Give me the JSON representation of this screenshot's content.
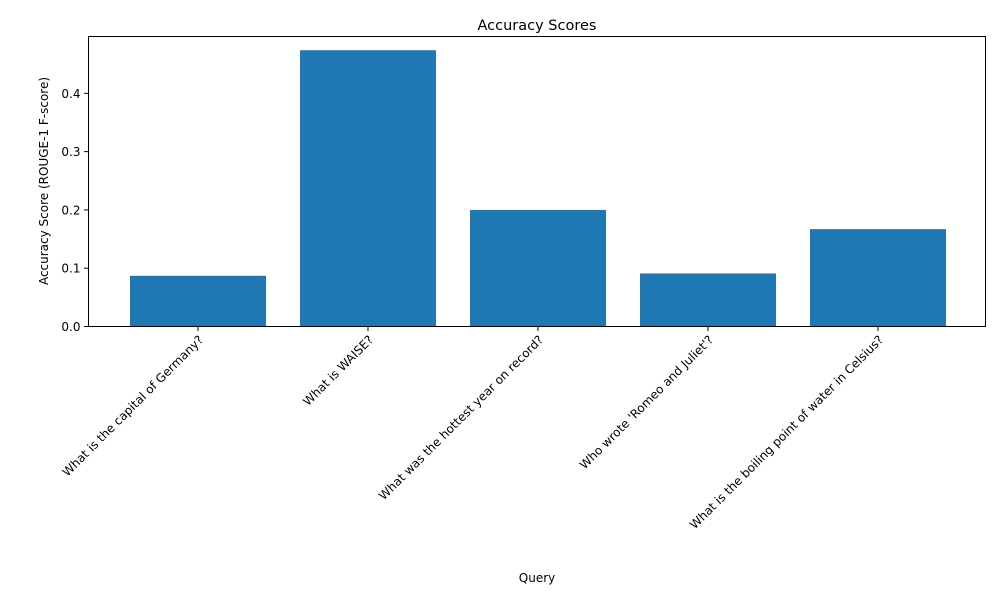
{
  "chart_data": {
    "type": "bar",
    "title": "Accuracy Scores",
    "xlabel": "Query",
    "ylabel": "Accuracy Score (ROUGE-1 F-score)",
    "categories": [
      "What is the capital of Germany?",
      "What is WAISE?",
      "What was the hottest year on record?",
      "Who wrote 'Romeo and Juliet'?",
      "What is the boiling point of water in Celsius?"
    ],
    "values": [
      0.087,
      0.474,
      0.2,
      0.091,
      0.167
    ],
    "ylim": [
      0,
      0.4975
    ],
    "yticks": [
      0.0,
      0.1,
      0.2,
      0.3,
      0.4
    ],
    "ytick_labels": [
      "0.0",
      "0.1",
      "0.2",
      "0.3",
      "0.4"
    ],
    "bar_color": "#1f77b4",
    "grid": false
  }
}
